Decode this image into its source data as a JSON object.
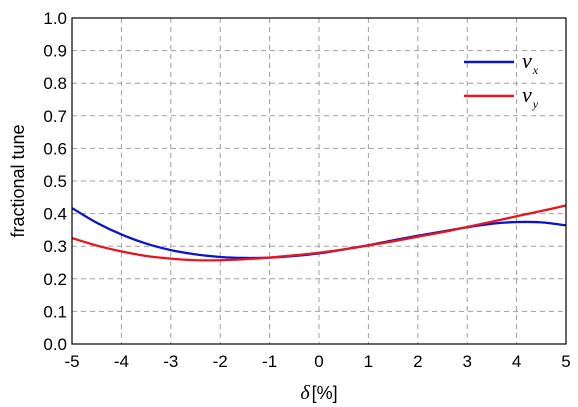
{
  "chart_data": {
    "type": "line",
    "title": "",
    "xlabel_symbol": "δ",
    "xlabel_unit": "[%]",
    "ylabel": "fractional tune",
    "xlim": [
      -5,
      5
    ],
    "ylim": [
      0.0,
      1.0
    ],
    "xticks": [
      "-5",
      "-4",
      "-3",
      "-2",
      "-1",
      "0",
      "1",
      "2",
      "3",
      "4",
      "5"
    ],
    "yticks": [
      "0.0",
      "0.1",
      "0.2",
      "0.3",
      "0.4",
      "0.5",
      "0.6",
      "0.7",
      "0.8",
      "0.9",
      "1.0"
    ],
    "grid": true,
    "legend_position": "top-right",
    "x": [
      -5,
      -4.5,
      -4,
      -3.5,
      -3,
      -2.5,
      -2,
      -1.5,
      -1,
      -0.5,
      0,
      0.5,
      1,
      1.5,
      2,
      2.5,
      3,
      3.5,
      4,
      4.5,
      5
    ],
    "series": [
      {
        "name_symbol": "ν",
        "name_sub": "x",
        "color": "#0a14c8",
        "values": [
          0.417,
          0.372,
          0.336,
          0.308,
          0.288,
          0.275,
          0.267,
          0.264,
          0.265,
          0.27,
          0.278,
          0.29,
          0.303,
          0.318,
          0.332,
          0.345,
          0.358,
          0.369,
          0.374,
          0.373,
          0.364
        ]
      },
      {
        "name_symbol": "ν",
        "name_sub": "y",
        "color": "#e8141e",
        "values": [
          0.325,
          0.302,
          0.284,
          0.27,
          0.262,
          0.257,
          0.257,
          0.26,
          0.265,
          0.272,
          0.28,
          0.29,
          0.302,
          0.315,
          0.329,
          0.343,
          0.359,
          0.375,
          0.392,
          0.408,
          0.425
        ]
      }
    ]
  }
}
